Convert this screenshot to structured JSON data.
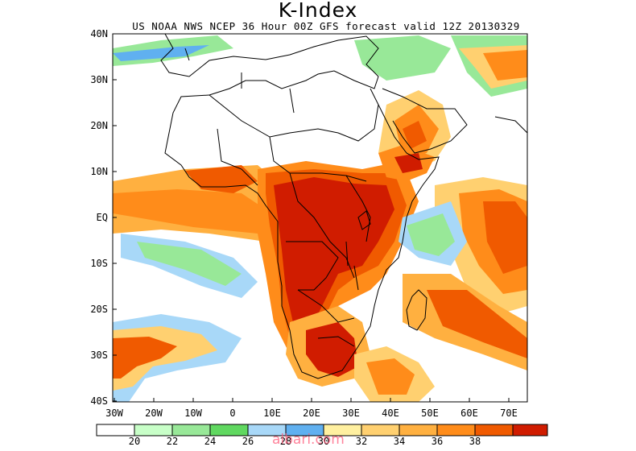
{
  "header": {
    "title": "K-Index",
    "subtitle": "US NOAA NWS NCEP 36 Hour 00Z GFS forecast valid 12Z 20130329"
  },
  "axes": {
    "lat_labels": [
      "40N",
      "30N",
      "20N",
      "10N",
      "EQ",
      "10S",
      "20S",
      "30S",
      "40S"
    ],
    "lon_labels": [
      "30W",
      "20W",
      "10W",
      "0",
      "10E",
      "20E",
      "30E",
      "40E",
      "50E",
      "60E",
      "70E"
    ],
    "lat_range": [
      -40,
      40
    ],
    "lon_range": [
      -30,
      75
    ]
  },
  "colorbar": {
    "labels": [
      "20",
      "22",
      "24",
      "26",
      "28",
      "30",
      "32",
      "34",
      "36",
      "38"
    ],
    "colors": [
      "#ffffff",
      "#c8ffc8",
      "#98e898",
      "#60d860",
      "#a8d8f8",
      "#60b0f0",
      "#fff0a0",
      "#ffd070",
      "#ffb040",
      "#ff8c1a",
      "#f05a00",
      "#d01c00"
    ]
  },
  "watermark": "albari.com"
}
